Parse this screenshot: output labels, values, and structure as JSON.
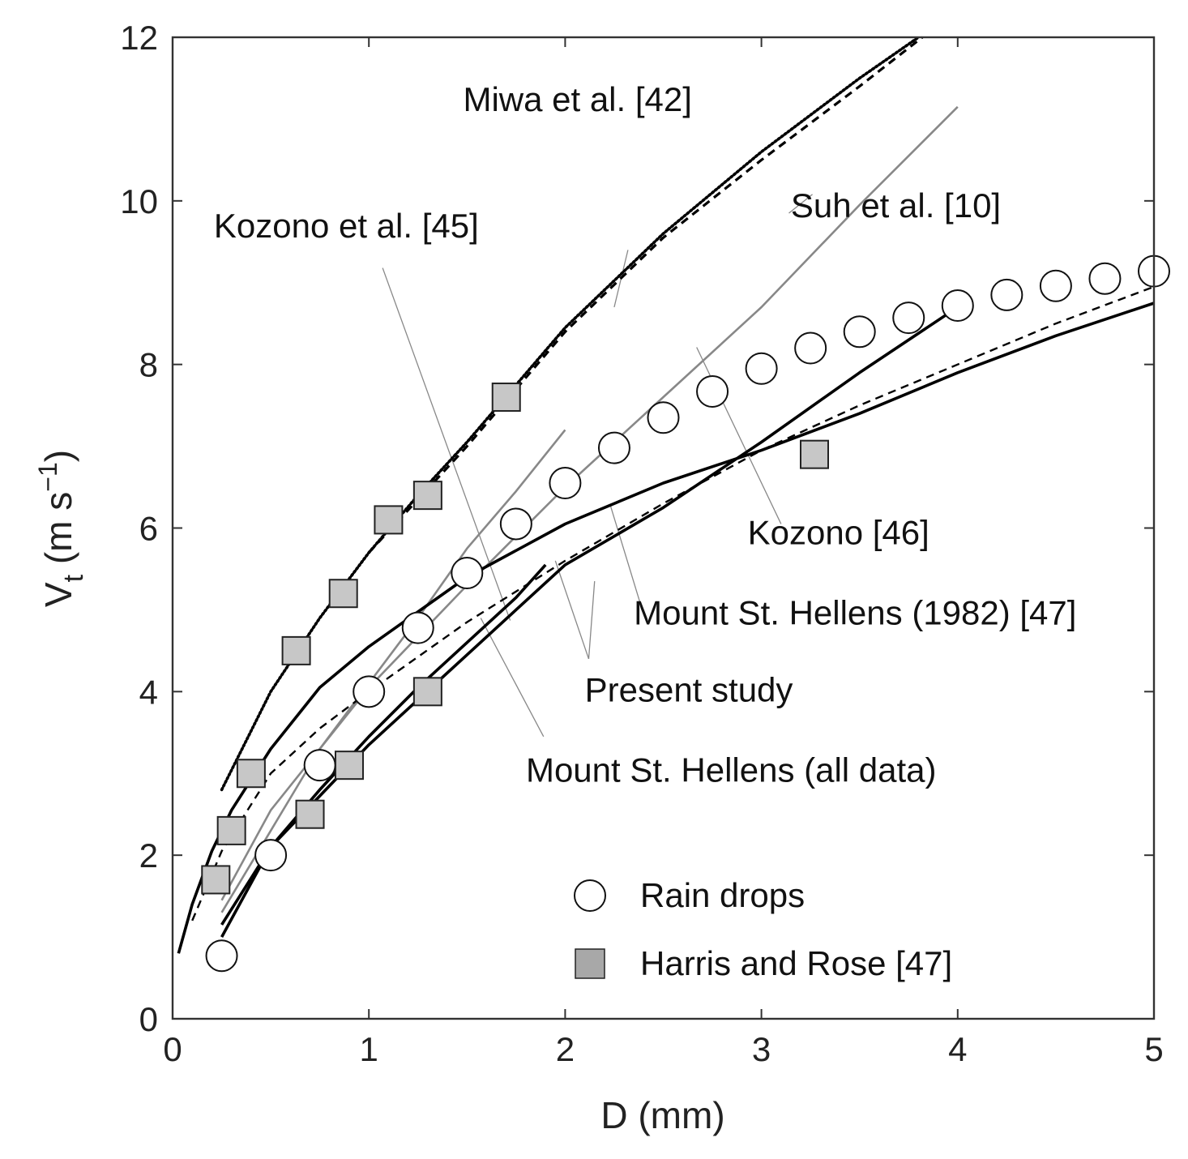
{
  "chart_data": {
    "type": "line",
    "title": "",
    "xlabel": "D (mm)",
    "ylabel_main": "V",
    "ylabel_sub": "t",
    "ylabel_unit_open": " (m s",
    "ylabel_unit_sup": "−1",
    "ylabel_unit_close": ")",
    "xlim": [
      0,
      5
    ],
    "ylim": [
      0,
      12
    ],
    "xticks": [
      0,
      1,
      2,
      3,
      4,
      5
    ],
    "xtick_labels": [
      "0",
      "1",
      "2",
      "3",
      "4",
      "5"
    ],
    "yticks": [
      0,
      2,
      4,
      6,
      8,
      10,
      12
    ],
    "ytick_labels": [
      "0",
      "2",
      "4",
      "6",
      "8",
      "10",
      "12"
    ],
    "grid": false,
    "legend_position": "bottom-right",
    "legend": [
      {
        "label": "Rain drops",
        "marker": "open-circle"
      },
      {
        "label": "Harris and Rose [47]",
        "marker": "gray-square"
      }
    ],
    "series": [
      {
        "name": "Rain drops",
        "kind": "scatter",
        "marker": "open-circle",
        "x": [
          0.25,
          0.5,
          0.75,
          1.0,
          1.25,
          1.5,
          1.75,
          2.0,
          2.25,
          2.5,
          2.75,
          3.0,
          3.25,
          3.5,
          3.75,
          4.0,
          4.25,
          4.5,
          4.75,
          5.0
        ],
        "y": [
          0.77,
          2.0,
          3.1,
          4.0,
          4.78,
          5.45,
          6.05,
          6.55,
          6.98,
          7.35,
          7.67,
          7.95,
          8.2,
          8.4,
          8.57,
          8.72,
          8.85,
          8.96,
          9.05,
          9.14
        ]
      },
      {
        "name": "Harris and Rose [47]",
        "kind": "scatter",
        "marker": "gray-square",
        "x": [
          0.22,
          0.3,
          0.4,
          0.63,
          0.87,
          1.1,
          1.3,
          1.7,
          0.7,
          0.9,
          1.3,
          3.27
        ],
        "y": [
          1.7,
          2.3,
          3.0,
          4.5,
          5.2,
          6.1,
          6.4,
          7.6,
          2.5,
          3.1,
          4.0,
          6.9
        ]
      },
      {
        "name": "Miwa et al. [42]",
        "kind": "line",
        "style": "dotted",
        "color": "#000000",
        "x": [
          0.25,
          0.5,
          0.75,
          1.0,
          1.25,
          1.5,
          1.75,
          2.0,
          2.5,
          3.0,
          3.5,
          3.8
        ],
        "y": [
          2.8,
          4.0,
          4.9,
          5.7,
          6.4,
          7.05,
          7.75,
          8.45,
          9.6,
          10.6,
          11.5,
          12.0
        ]
      },
      {
        "name": "Suh et al. [10]",
        "kind": "line",
        "style": "dashed",
        "color": "#000000",
        "x": [
          1.0,
          1.5,
          2.0,
          2.5,
          3.0,
          3.5,
          3.82
        ],
        "y": [
          5.7,
          7.0,
          8.4,
          9.55,
          10.5,
          11.4,
          12.0
        ]
      },
      {
        "name": "Kozono et al. [45]",
        "kind": "line",
        "style": "solid",
        "color": "#888888",
        "x": [
          0.25,
          0.5,
          0.75,
          1.0,
          1.25,
          1.5,
          1.75,
          2.0
        ],
        "y": [
          1.3,
          2.3,
          3.3,
          4.1,
          4.9,
          5.75,
          6.45,
          7.2
        ]
      },
      {
        "name": "Kozono [46]",
        "kind": "line",
        "style": "solid",
        "color": "#888888",
        "x": [
          0.25,
          0.5,
          1.0,
          1.5,
          2.0,
          2.5,
          3.0,
          3.5,
          4.0
        ],
        "y": [
          1.45,
          2.55,
          4.05,
          5.3,
          6.5,
          7.6,
          8.7,
          9.95,
          11.15
        ]
      },
      {
        "name": "Mount St. Hellens (1982) [47]",
        "kind": "line",
        "style": "solid",
        "color": "#000000",
        "x": [
          0.25,
          0.5,
          1.0,
          1.5,
          2.0,
          2.5,
          3.0,
          3.5,
          4.0
        ],
        "y": [
          1.0,
          2.1,
          3.35,
          4.45,
          5.55,
          6.25,
          7.05,
          7.9,
          8.7
        ]
      },
      {
        "name": "Mount St. Hellens (all data)",
        "kind": "line",
        "style": "solid",
        "color": "#000000",
        "x": [
          0.25,
          0.5,
          0.75,
          1.0,
          1.25,
          1.5,
          1.75,
          1.9
        ],
        "y": [
          1.15,
          2.1,
          2.8,
          3.45,
          4.05,
          4.6,
          5.15,
          5.55
        ]
      },
      {
        "name": "Present study",
        "kind": "line",
        "style": "solid",
        "color": "#000000",
        "x": [
          0.03,
          0.1,
          0.2,
          0.3,
          0.5,
          0.75,
          1.0,
          1.5,
          2.0,
          2.5,
          3.0,
          3.5,
          4.0,
          4.5,
          5.0
        ],
        "y": [
          0.8,
          1.4,
          2.05,
          2.55,
          3.3,
          4.05,
          4.55,
          5.4,
          6.05,
          6.55,
          6.95,
          7.4,
          7.9,
          8.35,
          8.75
        ]
      },
      {
        "name": "Present study (dashed)",
        "kind": "line",
        "style": "dashed",
        "color": "#000000",
        "x": [
          0.1,
          0.25,
          0.5,
          0.75,
          1.0,
          1.5,
          2.0,
          2.5,
          3.0,
          3.5,
          4.0,
          4.5,
          5.0
        ],
        "y": [
          1.2,
          2.05,
          3.0,
          3.55,
          4.0,
          4.85,
          5.6,
          6.3,
          6.95,
          7.5,
          8.0,
          8.5,
          8.95
        ]
      }
    ],
    "annotations": [
      {
        "text": "Miwa et al. [42]",
        "x": 1.48,
        "y": 11.1,
        "leaders": [
          [
            2.25,
            8.7,
            9.4,
            2.32
          ]
        ]
      },
      {
        "text": "Suh et al. [10]",
        "x": 3.15,
        "y": 9.8,
        "leaders": [
          [
            3.14,
            9.85,
            10.08,
            3.26
          ]
        ]
      },
      {
        "text": "Kozono et al. [45]",
        "x": 0.21,
        "y": 9.55,
        "leaders": [
          [
            1.07,
            9.18,
            4.87,
            1.72
          ]
        ]
      },
      {
        "text": "Kozono [46]",
        "x": 2.93,
        "y": 5.8,
        "leaders": [
          [
            3.1,
            6.05,
            8.21,
            2.67
          ]
        ]
      },
      {
        "text": "Mount St. Hellens (1982) [47]",
        "x": 2.35,
        "y": 4.82,
        "leaders": [
          [
            2.38,
            5.1,
            6.28,
            2.23
          ]
        ]
      },
      {
        "text": "Present study",
        "x": 2.1,
        "y": 3.88,
        "leaders": [
          [
            2.12,
            4.4,
            5.6,
            1.95
          ],
          [
            2.12,
            4.4,
            5.35,
            2.15
          ]
        ]
      },
      {
        "text": "Mount St. Hellens (all data)",
        "x": 1.8,
        "y": 2.9,
        "leaders": [
          [
            1.89,
            3.45,
            4.9,
            1.57
          ]
        ]
      }
    ]
  }
}
